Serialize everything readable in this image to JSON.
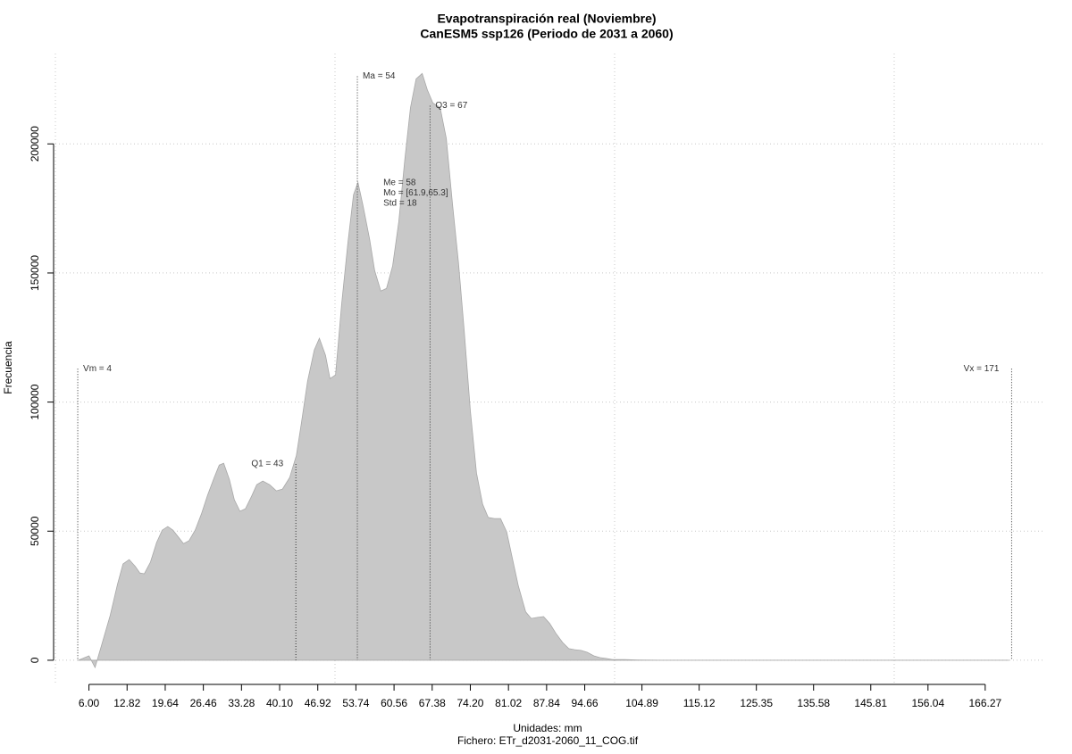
{
  "chart_data": {
    "type": "area",
    "title": "Evapotranspiración real (Noviembre)",
    "subtitle": "CanESM5 ssp126 (Periodo de 2031 a 2060)",
    "x_label": "Unidades: mm",
    "y_label": "Frecuencia",
    "footer": "Fichero: ETr_d2031-2060_11_COG.tif",
    "color": "#c8c8c8",
    "x": [
      4.1,
      6.0,
      7.1,
      8.4,
      9.8,
      11.1,
      12.1,
      13.2,
      14.3,
      15.1,
      15.9,
      17.0,
      18.1,
      19.1,
      20.1,
      21.0,
      22.0,
      22.9,
      23.9,
      25.0,
      26.1,
      27.2,
      28.4,
      29.3,
      30.1,
      31.1,
      32.0,
      33.0,
      34.0,
      35.1,
      36.0,
      37.1,
      38.3,
      39.5,
      40.6,
      41.9,
      43.1,
      44.0,
      45.1,
      46.3,
      47.2,
      48.3,
      49.1,
      50.1,
      51.2,
      52.3,
      53.3,
      54.1,
      55.0,
      56.2,
      57.1,
      58.2,
      59.2,
      60.3,
      61.4,
      62.5,
      63.5,
      64.5,
      65.6,
      66.5,
      67.5,
      68.8,
      69.9,
      71.0,
      72.1,
      73.1,
      74.2,
      75.3,
      76.4,
      77.4,
      78.5,
      79.6,
      80.7,
      81.7,
      82.8,
      84.1,
      85.1,
      86.2,
      87.3,
      88.4,
      89.5,
      90.7,
      91.8,
      92.9,
      94.0,
      95.1,
      96.3,
      97.4,
      98.5,
      99.6,
      101.8,
      104.2,
      108.2,
      170.5
    ],
    "values": [
      0,
      1700,
      -2800,
      6900,
      17300,
      29400,
      37300,
      39000,
      36300,
      33800,
      33500,
      38000,
      45600,
      50400,
      51800,
      50400,
      47700,
      45200,
      46300,
      50400,
      56600,
      63900,
      70800,
      75600,
      76300,
      70100,
      62200,
      57700,
      58700,
      63600,
      68000,
      69400,
      68000,
      65600,
      66300,
      70800,
      79400,
      91900,
      108100,
      120200,
      124700,
      118100,
      109100,
      110500,
      138200,
      161600,
      180300,
      185100,
      176200,
      163000,
      150900,
      143000,
      144000,
      152700,
      169900,
      194100,
      214100,
      225200,
      227300,
      221000,
      215900,
      214100,
      202100,
      176800,
      153700,
      127800,
      96700,
      72500,
      60400,
      55300,
      54900,
      54900,
      49700,
      39700,
      28700,
      18700,
      16200,
      16600,
      16900,
      14200,
      10400,
      6900,
      4500,
      4100,
      3800,
      3100,
      1700,
      1000,
      700,
      300,
      300,
      100,
      0,
      0
    ],
    "xlim": [
      0,
      177
    ],
    "ylim": [
      -9700,
      235000
    ],
    "xticks": [
      {
        "value": 6,
        "label": "6.00"
      },
      12.82,
      19.64,
      26.46,
      33.28,
      {
        "value": 40.1,
        "label": "40.10"
      },
      46.92,
      53.74,
      60.56,
      67.38,
      {
        "value": 74.2,
        "label": "74.20"
      },
      81.02,
      87.84,
      94.66,
      104.89,
      115.12,
      125.35,
      135.58,
      145.81,
      156.04,
      166.27
    ],
    "yticks": [
      0,
      50000,
      100000,
      150000,
      200000
    ],
    "xgrid": [
      0,
      50,
      100,
      150
    ],
    "grid": true,
    "annotations": [
      {
        "text": "Vm = 4",
        "x": 4,
        "y": 112900,
        "side": "right"
      },
      {
        "text": "Vx = 171",
        "x": 171,
        "y": 112900,
        "side": "left"
      },
      {
        "text": "Ma = 54",
        "x": 54,
        "y": 226200,
        "side": "right"
      },
      {
        "text": "Q1 = 43",
        "x": 43,
        "y": 76000,
        "side": "left"
      },
      {
        "text": "Q3 = 67",
        "x": 67,
        "y": 214800,
        "side": "right"
      }
    ],
    "stats": {
      "x": 58,
      "y": 185000,
      "lines": [
        "Me = 58",
        "Mo = [61.9,65.3]",
        "Std = 18"
      ]
    }
  }
}
